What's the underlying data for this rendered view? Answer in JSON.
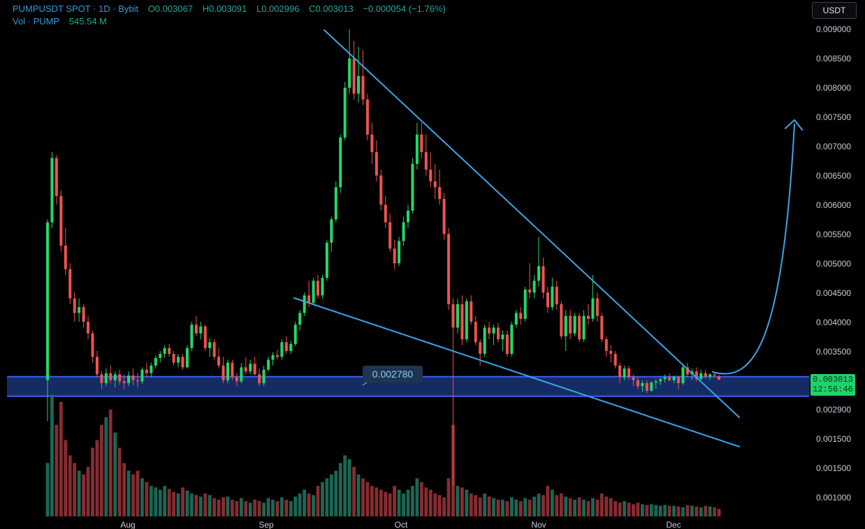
{
  "header": {
    "symbol": "PUMPUSDT SPOT · 1D · Bybit",
    "open_label": "O",
    "open": "0.003067",
    "high_label": "H",
    "high": "0.003091",
    "low_label": "L",
    "low": "0.002996",
    "close_label": "C",
    "close": "0.003013",
    "change": "−0.000054 (−1.76%)",
    "volume_label": "Vol · PUMP",
    "volume": "545.54 M"
  },
  "currency_button": "USDT",
  "last_price": {
    "price": "0.003013",
    "countdown": "12:56:46"
  },
  "colors": {
    "up": "#26a69a",
    "up_bright": "#22d868",
    "down": "#ef5350",
    "trend": "#3aa6e8",
    "zone": "#16306e",
    "zone_border": "#3b5ef0"
  },
  "chart_data": {
    "type": "candlestick",
    "x_axis_months": [
      "Aug",
      "Sep",
      "Oct",
      "Nov",
      "Dec"
    ],
    "y_tick_labels": [
      "0.009000",
      "0.008500",
      "0.008000",
      "0.007500",
      "0.007000",
      "0.006500",
      "0.006000",
      "0.005500",
      "0.005000",
      "0.004500",
      "0.004000",
      "0.003500",
      "0.002900",
      "0.001500",
      "0.001500",
      "0.001000"
    ],
    "support_zone": {
      "label": "0.002780",
      "low": 0.00273,
      "high": 0.00306
    },
    "patterns": [
      "falling wedge",
      "projected upward breakout curve"
    ],
    "candles": [
      {
        "o": 0.003,
        "h": 0.00575,
        "l": 0.0023,
        "c": 0.0057
      },
      {
        "o": 0.0057,
        "h": 0.0069,
        "l": 0.0056,
        "c": 0.0068
      },
      {
        "o": 0.0068,
        "h": 0.00685,
        "l": 0.006,
        "c": 0.00615
      },
      {
        "o": 0.00615,
        "h": 0.00625,
        "l": 0.0052,
        "c": 0.0053
      },
      {
        "o": 0.0053,
        "h": 0.0056,
        "l": 0.0048,
        "c": 0.0049
      },
      {
        "o": 0.0049,
        "h": 0.005,
        "l": 0.0043,
        "c": 0.0044
      },
      {
        "o": 0.0044,
        "h": 0.0045,
        "l": 0.004,
        "c": 0.00415
      },
      {
        "o": 0.00415,
        "h": 0.0044,
        "l": 0.004,
        "c": 0.00425
      },
      {
        "o": 0.00425,
        "h": 0.0043,
        "l": 0.0039,
        "c": 0.004
      },
      {
        "o": 0.004,
        "h": 0.0041,
        "l": 0.0037,
        "c": 0.0038
      },
      {
        "o": 0.0038,
        "h": 0.00385,
        "l": 0.0033,
        "c": 0.0034
      },
      {
        "o": 0.0034,
        "h": 0.0035,
        "l": 0.00305,
        "c": 0.0031
      },
      {
        "o": 0.0031,
        "h": 0.00315,
        "l": 0.00285,
        "c": 0.00295
      },
      {
        "o": 0.00295,
        "h": 0.0032,
        "l": 0.0029,
        "c": 0.00312
      },
      {
        "o": 0.00312,
        "h": 0.00325,
        "l": 0.00295,
        "c": 0.003
      },
      {
        "o": 0.003,
        "h": 0.00315,
        "l": 0.00288,
        "c": 0.0031
      },
      {
        "o": 0.0031,
        "h": 0.00318,
        "l": 0.00292,
        "c": 0.00298
      },
      {
        "o": 0.00298,
        "h": 0.0031,
        "l": 0.00285,
        "c": 0.00295
      },
      {
        "o": 0.00295,
        "h": 0.00315,
        "l": 0.0029,
        "c": 0.00308
      },
      {
        "o": 0.00308,
        "h": 0.0032,
        "l": 0.00292,
        "c": 0.003
      },
      {
        "o": 0.003,
        "h": 0.00312,
        "l": 0.00288,
        "c": 0.00298
      },
      {
        "o": 0.00298,
        "h": 0.00322,
        "l": 0.00294,
        "c": 0.00318
      },
      {
        "o": 0.00318,
        "h": 0.0033,
        "l": 0.00305,
        "c": 0.00312
      },
      {
        "o": 0.00312,
        "h": 0.0033,
        "l": 0.00305,
        "c": 0.00325
      },
      {
        "o": 0.00325,
        "h": 0.00342,
        "l": 0.0032,
        "c": 0.00338
      },
      {
        "o": 0.00338,
        "h": 0.0035,
        "l": 0.0033,
        "c": 0.00345
      },
      {
        "o": 0.00345,
        "h": 0.0036,
        "l": 0.00338,
        "c": 0.00355
      },
      {
        "o": 0.00355,
        "h": 0.00362,
        "l": 0.0034,
        "c": 0.00345
      },
      {
        "o": 0.00345,
        "h": 0.0035,
        "l": 0.00325,
        "c": 0.0033
      },
      {
        "o": 0.0033,
        "h": 0.00345,
        "l": 0.00322,
        "c": 0.0034
      },
      {
        "o": 0.0034,
        "h": 0.00345,
        "l": 0.00318,
        "c": 0.00322
      },
      {
        "o": 0.00322,
        "h": 0.0036,
        "l": 0.0032,
        "c": 0.00355
      },
      {
        "o": 0.00355,
        "h": 0.004,
        "l": 0.0035,
        "c": 0.00395
      },
      {
        "o": 0.00395,
        "h": 0.0041,
        "l": 0.00375,
        "c": 0.0038
      },
      {
        "o": 0.0038,
        "h": 0.004,
        "l": 0.0037,
        "c": 0.00392
      },
      {
        "o": 0.00392,
        "h": 0.00395,
        "l": 0.0035,
        "c": 0.00355
      },
      {
        "o": 0.00355,
        "h": 0.00372,
        "l": 0.0034,
        "c": 0.00365
      },
      {
        "o": 0.00365,
        "h": 0.0037,
        "l": 0.00335,
        "c": 0.0034
      },
      {
        "o": 0.0034,
        "h": 0.00355,
        "l": 0.0032,
        "c": 0.00325
      },
      {
        "o": 0.00325,
        "h": 0.0034,
        "l": 0.00295,
        "c": 0.003
      },
      {
        "o": 0.003,
        "h": 0.00335,
        "l": 0.00295,
        "c": 0.0033
      },
      {
        "o": 0.0033,
        "h": 0.00335,
        "l": 0.003,
        "c": 0.00305
      },
      {
        "o": 0.00305,
        "h": 0.00312,
        "l": 0.0029,
        "c": 0.00298
      },
      {
        "o": 0.00298,
        "h": 0.0033,
        "l": 0.00295,
        "c": 0.00322
      },
      {
        "o": 0.00322,
        "h": 0.0034,
        "l": 0.0031,
        "c": 0.00315
      },
      {
        "o": 0.00315,
        "h": 0.00335,
        "l": 0.0031,
        "c": 0.00328
      },
      {
        "o": 0.00328,
        "h": 0.0034,
        "l": 0.00308,
        "c": 0.0031
      },
      {
        "o": 0.0031,
        "h": 0.0032,
        "l": 0.0029,
        "c": 0.00295
      },
      {
        "o": 0.00295,
        "h": 0.00325,
        "l": 0.0029,
        "c": 0.00318
      },
      {
        "o": 0.00318,
        "h": 0.0034,
        "l": 0.00315,
        "c": 0.00335
      },
      {
        "o": 0.00335,
        "h": 0.00348,
        "l": 0.00325,
        "c": 0.00343
      },
      {
        "o": 0.00343,
        "h": 0.00352,
        "l": 0.00335,
        "c": 0.0034
      },
      {
        "o": 0.0034,
        "h": 0.0037,
        "l": 0.00335,
        "c": 0.00365
      },
      {
        "o": 0.00365,
        "h": 0.00375,
        "l": 0.00345,
        "c": 0.0035
      },
      {
        "o": 0.0035,
        "h": 0.00368,
        "l": 0.00345,
        "c": 0.00362
      },
      {
        "o": 0.00362,
        "h": 0.004,
        "l": 0.00358,
        "c": 0.00395
      },
      {
        "o": 0.00395,
        "h": 0.0042,
        "l": 0.00385,
        "c": 0.00415
      },
      {
        "o": 0.00415,
        "h": 0.0045,
        "l": 0.0041,
        "c": 0.00445
      },
      {
        "o": 0.00445,
        "h": 0.0047,
        "l": 0.00425,
        "c": 0.00432
      },
      {
        "o": 0.00432,
        "h": 0.00475,
        "l": 0.00428,
        "c": 0.0047
      },
      {
        "o": 0.0047,
        "h": 0.0048,
        "l": 0.0044,
        "c": 0.00445
      },
      {
        "o": 0.00445,
        "h": 0.0048,
        "l": 0.0044,
        "c": 0.00475
      },
      {
        "o": 0.00475,
        "h": 0.0054,
        "l": 0.0047,
        "c": 0.00535
      },
      {
        "o": 0.00535,
        "h": 0.0058,
        "l": 0.0052,
        "c": 0.00575
      },
      {
        "o": 0.00575,
        "h": 0.0064,
        "l": 0.0057,
        "c": 0.0063
      },
      {
        "o": 0.0063,
        "h": 0.0072,
        "l": 0.0062,
        "c": 0.00715
      },
      {
        "o": 0.00715,
        "h": 0.0081,
        "l": 0.0071,
        "c": 0.008
      },
      {
        "o": 0.008,
        "h": 0.009,
        "l": 0.0079,
        "c": 0.0085
      },
      {
        "o": 0.0085,
        "h": 0.0088,
        "l": 0.0078,
        "c": 0.0079
      },
      {
        "o": 0.0079,
        "h": 0.0087,
        "l": 0.00775,
        "c": 0.0082
      },
      {
        "o": 0.0082,
        "h": 0.00865,
        "l": 0.0077,
        "c": 0.0078
      },
      {
        "o": 0.0078,
        "h": 0.0079,
        "l": 0.0071,
        "c": 0.0072
      },
      {
        "o": 0.0072,
        "h": 0.0074,
        "l": 0.0067,
        "c": 0.0069
      },
      {
        "o": 0.0069,
        "h": 0.0071,
        "l": 0.0064,
        "c": 0.0065
      },
      {
        "o": 0.0065,
        "h": 0.0066,
        "l": 0.0059,
        "c": 0.006
      },
      {
        "o": 0.006,
        "h": 0.00615,
        "l": 0.0056,
        "c": 0.0057
      },
      {
        "o": 0.0057,
        "h": 0.00585,
        "l": 0.0052,
        "c": 0.00525
      },
      {
        "o": 0.00525,
        "h": 0.0054,
        "l": 0.0049,
        "c": 0.005
      },
      {
        "o": 0.005,
        "h": 0.00545,
        "l": 0.00495,
        "c": 0.00538
      },
      {
        "o": 0.00538,
        "h": 0.0058,
        "l": 0.0053,
        "c": 0.0057
      },
      {
        "o": 0.0057,
        "h": 0.006,
        "l": 0.0056,
        "c": 0.0059
      },
      {
        "o": 0.0059,
        "h": 0.0068,
        "l": 0.00585,
        "c": 0.0067
      },
      {
        "o": 0.0067,
        "h": 0.0074,
        "l": 0.0066,
        "c": 0.0072
      },
      {
        "o": 0.0072,
        "h": 0.0074,
        "l": 0.0068,
        "c": 0.0069
      },
      {
        "o": 0.0069,
        "h": 0.0072,
        "l": 0.0065,
        "c": 0.0066
      },
      {
        "o": 0.0066,
        "h": 0.0069,
        "l": 0.0063,
        "c": 0.0064
      },
      {
        "o": 0.0064,
        "h": 0.0067,
        "l": 0.0061,
        "c": 0.0063
      },
      {
        "o": 0.0063,
        "h": 0.0066,
        "l": 0.006,
        "c": 0.0061
      },
      {
        "o": 0.0061,
        "h": 0.0062,
        "l": 0.0054,
        "c": 0.0055
      },
      {
        "o": 0.0055,
        "h": 0.0056,
        "l": 0.0042,
        "c": 0.0043
      },
      {
        "o": 0.0043,
        "h": 0.0044,
        "l": 0.0012,
        "c": 0.0039
      },
      {
        "o": 0.0039,
        "h": 0.0044,
        "l": 0.0038,
        "c": 0.0043
      },
      {
        "o": 0.0043,
        "h": 0.00445,
        "l": 0.0036,
        "c": 0.0037
      },
      {
        "o": 0.0037,
        "h": 0.0044,
        "l": 0.00365,
        "c": 0.00435
      },
      {
        "o": 0.00435,
        "h": 0.00445,
        "l": 0.00395,
        "c": 0.004
      },
      {
        "o": 0.004,
        "h": 0.0041,
        "l": 0.0036,
        "c": 0.00365
      },
      {
        "o": 0.00365,
        "h": 0.0037,
        "l": 0.00325,
        "c": 0.00345
      },
      {
        "o": 0.00345,
        "h": 0.00395,
        "l": 0.0034,
        "c": 0.0039
      },
      {
        "o": 0.0039,
        "h": 0.004,
        "l": 0.0037,
        "c": 0.0038
      },
      {
        "o": 0.0038,
        "h": 0.00395,
        "l": 0.0036,
        "c": 0.0039
      },
      {
        "o": 0.0039,
        "h": 0.00398,
        "l": 0.00365,
        "c": 0.0037
      },
      {
        "o": 0.0037,
        "h": 0.00385,
        "l": 0.0035,
        "c": 0.00378
      },
      {
        "o": 0.00378,
        "h": 0.00385,
        "l": 0.0034,
        "c": 0.00345
      },
      {
        "o": 0.00345,
        "h": 0.004,
        "l": 0.0034,
        "c": 0.00395
      },
      {
        "o": 0.00395,
        "h": 0.0042,
        "l": 0.0039,
        "c": 0.00415
      },
      {
        "o": 0.00415,
        "h": 0.00425,
        "l": 0.00395,
        "c": 0.00405
      },
      {
        "o": 0.00405,
        "h": 0.0046,
        "l": 0.004,
        "c": 0.00455
      },
      {
        "o": 0.00455,
        "h": 0.005,
        "l": 0.0044,
        "c": 0.0045
      },
      {
        "o": 0.0045,
        "h": 0.0048,
        "l": 0.0044,
        "c": 0.0047
      },
      {
        "o": 0.0047,
        "h": 0.00545,
        "l": 0.0046,
        "c": 0.00495
      },
      {
        "o": 0.00495,
        "h": 0.0051,
        "l": 0.0044,
        "c": 0.0045
      },
      {
        "o": 0.0045,
        "h": 0.0046,
        "l": 0.00415,
        "c": 0.00425
      },
      {
        "o": 0.00425,
        "h": 0.00475,
        "l": 0.0042,
        "c": 0.0046
      },
      {
        "o": 0.0046,
        "h": 0.0047,
        "l": 0.0042,
        "c": 0.0043
      },
      {
        "o": 0.0043,
        "h": 0.00435,
        "l": 0.0037,
        "c": 0.00375
      },
      {
        "o": 0.00375,
        "h": 0.0042,
        "l": 0.0035,
        "c": 0.0041
      },
      {
        "o": 0.0041,
        "h": 0.0042,
        "l": 0.0037,
        "c": 0.0038
      },
      {
        "o": 0.0038,
        "h": 0.00415,
        "l": 0.00375,
        "c": 0.0041
      },
      {
        "o": 0.0041,
        "h": 0.00415,
        "l": 0.00365,
        "c": 0.0037
      },
      {
        "o": 0.0037,
        "h": 0.0042,
        "l": 0.00365,
        "c": 0.0041
      },
      {
        "o": 0.0041,
        "h": 0.0043,
        "l": 0.00395,
        "c": 0.00405
      },
      {
        "o": 0.00405,
        "h": 0.0048,
        "l": 0.004,
        "c": 0.0044
      },
      {
        "o": 0.0044,
        "h": 0.0045,
        "l": 0.004,
        "c": 0.0041
      },
      {
        "o": 0.0041,
        "h": 0.00415,
        "l": 0.00365,
        "c": 0.0037
      },
      {
        "o": 0.0037,
        "h": 0.00375,
        "l": 0.0034,
        "c": 0.0035
      },
      {
        "o": 0.0035,
        "h": 0.0036,
        "l": 0.0033,
        "c": 0.00345
      },
      {
        "o": 0.00345,
        "h": 0.0035,
        "l": 0.0032,
        "c": 0.00325
      },
      {
        "o": 0.00325,
        "h": 0.0033,
        "l": 0.00295,
        "c": 0.00305
      },
      {
        "o": 0.00305,
        "h": 0.00325,
        "l": 0.003,
        "c": 0.0032
      },
      {
        "o": 0.0032,
        "h": 0.00325,
        "l": 0.003,
        "c": 0.00305
      },
      {
        "o": 0.00305,
        "h": 0.0031,
        "l": 0.0029,
        "c": 0.003
      },
      {
        "o": 0.003,
        "h": 0.00305,
        "l": 0.00285,
        "c": 0.0029
      },
      {
        "o": 0.0029,
        "h": 0.003,
        "l": 0.0028,
        "c": 0.00295
      },
      {
        "o": 0.00295,
        "h": 0.003,
        "l": 0.00278,
        "c": 0.00282
      },
      {
        "o": 0.00282,
        "h": 0.00298,
        "l": 0.0028,
        "c": 0.00296
      },
      {
        "o": 0.00296,
        "h": 0.00302,
        "l": 0.00285,
        "c": 0.00298
      },
      {
        "o": 0.00298,
        "h": 0.00305,
        "l": 0.00292,
        "c": 0.00302
      },
      {
        "o": 0.00302,
        "h": 0.0031,
        "l": 0.00296,
        "c": 0.00305
      },
      {
        "o": 0.00305,
        "h": 0.00312,
        "l": 0.00298,
        "c": 0.003
      },
      {
        "o": 0.003,
        "h": 0.00308,
        "l": 0.00295,
        "c": 0.00306
      },
      {
        "o": 0.00306,
        "h": 0.00308,
        "l": 0.00285,
        "c": 0.00295
      },
      {
        "o": 0.00295,
        "h": 0.00325,
        "l": 0.00292,
        "c": 0.00322
      },
      {
        "o": 0.00322,
        "h": 0.0033,
        "l": 0.00305,
        "c": 0.0031
      },
      {
        "o": 0.0031,
        "h": 0.0032,
        "l": 0.003,
        "c": 0.00315
      },
      {
        "o": 0.00315,
        "h": 0.00322,
        "l": 0.00298,
        "c": 0.00302
      },
      {
        "o": 0.00302,
        "h": 0.00318,
        "l": 0.003,
        "c": 0.00312
      },
      {
        "o": 0.00312,
        "h": 0.00318,
        "l": 0.00302,
        "c": 0.00306
      },
      {
        "o": 0.00306,
        "h": 0.00312,
        "l": 0.003,
        "c": 0.0031
      },
      {
        "o": 0.0031,
        "h": 0.00312,
        "l": 0.00305,
        "c": 0.00308
      },
      {
        "o": 0.00307,
        "h": 0.00309,
        "l": 0.003,
        "c": 0.00301
      }
    ],
    "volume": [
      70,
      160,
      120,
      150,
      100,
      80,
      70,
      60,
      55,
      65,
      90,
      100,
      120,
      130,
      140,
      110,
      90,
      70,
      60,
      55,
      60,
      50,
      45,
      40,
      38,
      35,
      40,
      36,
      32,
      30,
      38,
      34,
      30,
      28,
      26,
      30,
      28,
      24,
      22,
      25,
      26,
      22,
      20,
      24,
      20,
      18,
      22,
      20,
      18,
      24,
      22,
      20,
      25,
      22,
      20,
      26,
      30,
      35,
      30,
      28,
      40,
      45,
      50,
      55,
      60,
      70,
      80,
      75,
      65,
      55,
      50,
      45,
      40,
      38,
      35,
      32,
      30,
      40,
      35,
      30,
      35,
      40,
      50,
      45,
      38,
      35,
      30,
      28,
      25,
      50,
      120,
      40,
      38,
      35,
      30,
      28,
      25,
      30,
      26,
      24,
      22,
      22,
      20,
      25,
      22,
      20,
      24,
      22,
      26,
      30,
      28,
      40,
      35,
      28,
      30,
      26,
      24,
      22,
      25,
      22,
      20,
      24,
      22,
      30,
      26,
      24,
      20,
      18,
      20,
      18,
      16,
      18,
      16,
      15,
      16,
      15,
      14,
      15,
      14,
      14,
      13,
      12,
      15,
      14,
      13,
      12,
      14,
      13,
      12,
      10
    ],
    "volume_peak_label": "0.001500"
  }
}
